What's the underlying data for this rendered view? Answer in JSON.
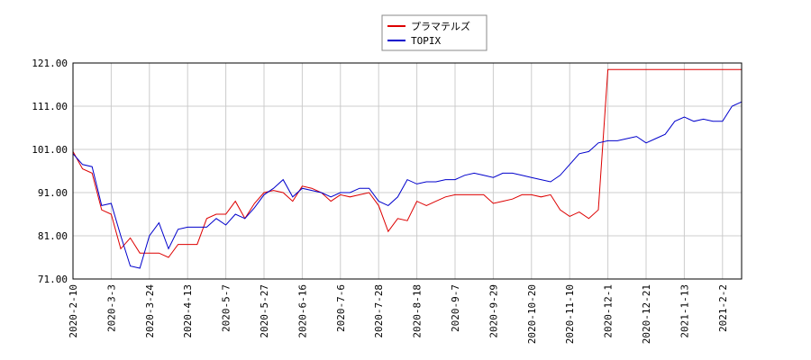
{
  "chart_data": {
    "type": "line",
    "categories": [
      "2020-2-10",
      null,
      null,
      null,
      "2020-3-3",
      null,
      null,
      null,
      "2020-3-24",
      null,
      null,
      null,
      "2020-4-13",
      null,
      null,
      null,
      "2020-5-7",
      null,
      null,
      null,
      "2020-5-27",
      null,
      null,
      null,
      "2020-6-16",
      null,
      null,
      null,
      "2020-7-6",
      null,
      null,
      null,
      "2020-7-28",
      null,
      null,
      null,
      "2020-8-18",
      null,
      null,
      null,
      "2020-9-7",
      null,
      null,
      null,
      "2020-9-29",
      null,
      null,
      null,
      "2020-10-20",
      null,
      null,
      null,
      "2020-11-10",
      null,
      null,
      null,
      "2020-12-1",
      null,
      null,
      null,
      "2020-12-21",
      null,
      null,
      null,
      "2021-1-13",
      null,
      null,
      null,
      "2021-2-2",
      null,
      null
    ],
    "series": [
      {
        "name": "プラマテルズ",
        "color": "#dd0000",
        "values": [
          100.5,
          96.5,
          95.5,
          87,
          86,
          78,
          80.5,
          77,
          77,
          77,
          76,
          79,
          79,
          79,
          85,
          86,
          86,
          89,
          85,
          88.5,
          91,
          91.5,
          91,
          89,
          92.5,
          92,
          91,
          89,
          90.5,
          90,
          90.5,
          91,
          88,
          82,
          85,
          84.5,
          89,
          88,
          89,
          90,
          90.5,
          90.5,
          90.5,
          90.5,
          88.5,
          89,
          89.5,
          90.5,
          90.5,
          90,
          90.5,
          87,
          85.5,
          86.5,
          85,
          87,
          119.5,
          119.5,
          119.5,
          119.5,
          119.5,
          119.5,
          119.5,
          119.5,
          119.5,
          119.5,
          119.5,
          119.5,
          119.5,
          119.5,
          119.5
        ]
      },
      {
        "name": "TOPIX",
        "color": "#0000cc",
        "values": [
          100,
          97.5,
          97,
          88,
          88.5,
          81,
          74,
          73.5,
          81,
          84,
          78,
          82.5,
          83,
          83,
          83,
          85,
          83.5,
          86,
          85,
          87.5,
          90.5,
          92,
          94,
          90,
          92,
          91.5,
          91,
          90,
          91,
          91,
          92,
          92,
          89,
          88,
          90,
          94,
          93,
          93.5,
          93.5,
          94,
          94,
          95,
          95.5,
          95,
          94.5,
          95.5,
          95.5,
          95,
          94.5,
          94,
          93.5,
          95,
          97.5,
          100,
          100.5,
          102.5,
          103,
          103,
          103.5,
          104,
          102.5,
          103.5,
          104.5,
          107.5,
          108.5,
          107.5,
          108,
          107.5,
          107.5,
          111,
          112
        ]
      }
    ],
    "ylim": [
      71,
      121
    ],
    "yticks": [
      {
        "value": 71,
        "label": "71.00"
      },
      {
        "value": 81,
        "label": "81.00"
      },
      {
        "value": 91,
        "label": "91.00"
      },
      {
        "value": 101,
        "label": "101.00"
      },
      {
        "value": 111,
        "label": "111.00"
      },
      {
        "value": 121,
        "label": "121.00"
      }
    ],
    "grid": true,
    "legend": "top"
  }
}
